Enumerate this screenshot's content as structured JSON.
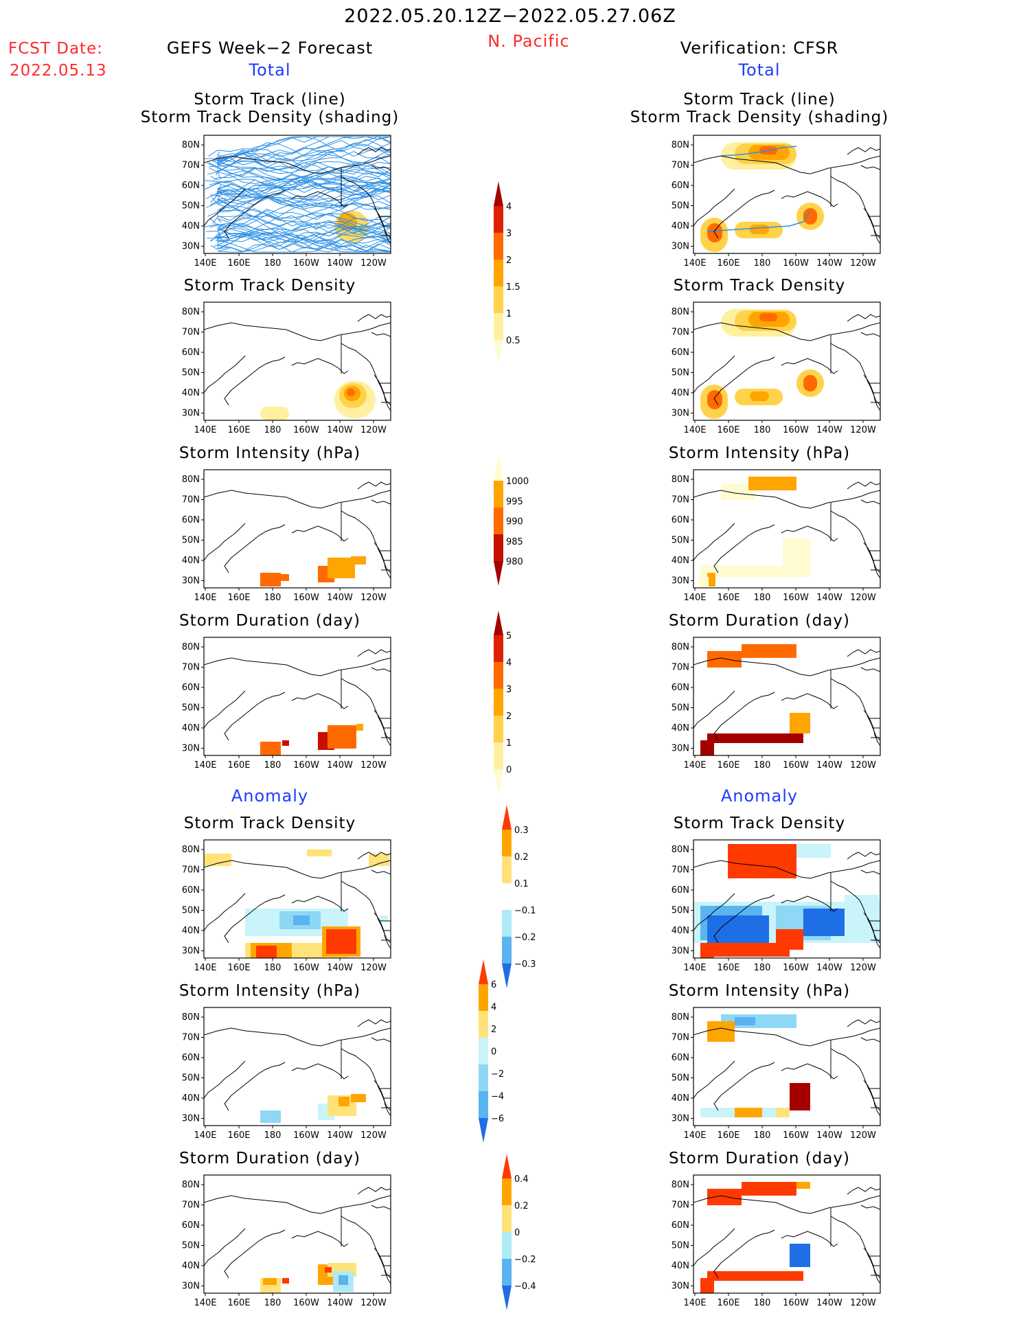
{
  "header": {
    "period": "2022.05.20.12Z−2022.05.27.06Z",
    "region": "N. Pacific",
    "fcst_label": "FCST Date:",
    "fcst_date": "2022.05.13",
    "left_title": "GEFS Week−2 Forecast",
    "right_title": "Verification: CFSR",
    "left_total": "Total",
    "right_total": "Total",
    "left_anomaly": "Anomaly",
    "right_anomaly": "Anomaly"
  },
  "panel_titles": {
    "track_line": "Storm Track (line)",
    "track_shading": "Storm Track Density (shading)",
    "density": "Storm Track Density",
    "intensity": "Storm Intensity (hPa)",
    "duration": "Storm Duration (day)"
  },
  "axes": {
    "lat_labels": [
      "80N",
      "70N",
      "60N",
      "50N",
      "40N",
      "30N"
    ],
    "lon_labels": [
      "140E",
      "160E",
      "180",
      "160W",
      "140W",
      "120W"
    ]
  },
  "colorbars": {
    "density_total": {
      "labels": [
        "4",
        "3",
        "2",
        "1.5",
        "1",
        "0.5"
      ],
      "colors": [
        "#a50000",
        "#e02000",
        "#ff6a00",
        "#ffa500",
        "#ffd24a",
        "#fff0a0",
        "#fffbd0"
      ]
    },
    "intensity_total": {
      "labels": [
        "1000",
        "995",
        "990",
        "985",
        "980"
      ],
      "colors": [
        "#fffbd0",
        "#ffa500",
        "#ff6a00",
        "#c81000",
        "#a50000"
      ]
    },
    "duration_total": {
      "labels": [
        "5",
        "4",
        "3",
        "2",
        "1",
        "0"
      ],
      "colors": [
        "#a50000",
        "#e02000",
        "#ff6a00",
        "#ffa500",
        "#ffd24a",
        "#fff0a0",
        "#fffbd0"
      ]
    },
    "density_anom": {
      "labels": [
        "0.3",
        "0.2",
        "0.1",
        "−0.1",
        "−0.2",
        "−0.3"
      ],
      "colors": [
        "#ff3a00",
        "#ffa500",
        "#ffe37a",
        "#ffffff",
        "#aeeaf5",
        "#5ab4f0",
        "#1e6ee6"
      ]
    },
    "intensity_anom": {
      "labels": [
        "6",
        "4",
        "2",
        "0",
        "−2",
        "−4",
        "−6"
      ],
      "colors": [
        "#ff3a00",
        "#ffa500",
        "#ffe37a",
        "#c8f4fa",
        "#8ed7f5",
        "#5ab4f0",
        "#1e6ee6"
      ]
    },
    "duration_anom": {
      "labels": [
        "0.4",
        "0.2",
        "0",
        "−0.2",
        "−0.4"
      ],
      "colors": [
        "#ff3a00",
        "#ffa500",
        "#ffe37a",
        "#aeeaf5",
        "#5ab4f0",
        "#1e6ee6"
      ]
    }
  },
  "palette": {
    "track_line": "#2c8fe6",
    "coast": "#000000"
  }
}
